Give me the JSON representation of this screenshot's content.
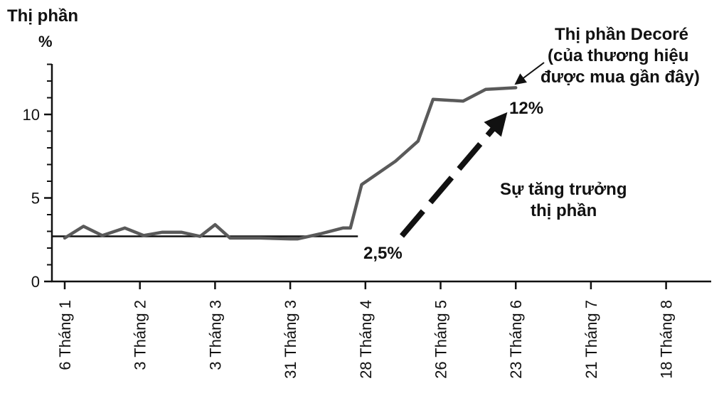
{
  "chart_data": {
    "type": "line",
    "ylabel_line1": "Thị phần",
    "ylabel_line2": "%",
    "ylim": [
      0,
      13
    ],
    "yticks": [
      0,
      5,
      10
    ],
    "x_tick_labels": [
      "6 Tháng 1",
      "3 Tháng 2",
      "3 Tháng 3",
      "31 Tháng 3",
      "28 Tháng 4",
      "26 Tháng 5",
      "23 Tháng 6",
      "21 Tháng 7",
      "18 Tháng 8"
    ],
    "series": [
      {
        "name": "Thị phần Decoré",
        "color": "#5a5a5a",
        "points": [
          [
            0,
            2.6
          ],
          [
            0.25,
            3.3
          ],
          [
            0.5,
            2.75
          ],
          [
            0.8,
            3.2
          ],
          [
            1.05,
            2.75
          ],
          [
            1.3,
            2.95
          ],
          [
            1.55,
            2.95
          ],
          [
            1.8,
            2.7
          ],
          [
            2.0,
            3.4
          ],
          [
            2.2,
            2.6
          ],
          [
            2.6,
            2.6
          ],
          [
            3.0,
            2.55
          ],
          [
            3.1,
            2.55
          ],
          [
            3.4,
            2.85
          ],
          [
            3.7,
            3.2
          ],
          [
            3.8,
            3.2
          ],
          [
            3.95,
            5.8
          ],
          [
            4.4,
            7.2
          ],
          [
            4.7,
            8.4
          ],
          [
            4.9,
            10.9
          ],
          [
            5.3,
            10.8
          ],
          [
            5.6,
            11.5
          ],
          [
            6.0,
            11.6
          ]
        ]
      }
    ],
    "baseline": {
      "value": 2.7,
      "x_start": 0,
      "x_end": 3.9,
      "color": "#111111"
    },
    "annotations": {
      "legend_line1": "Thị phần Decoré",
      "legend_line2": "(của thương hiệu",
      "legend_line3": "được mua gần đây)",
      "growth_line1": "Sự tăng trưởng",
      "growth_line2": "thị phần",
      "start_value": "2,5%",
      "end_value": "12%"
    }
  }
}
